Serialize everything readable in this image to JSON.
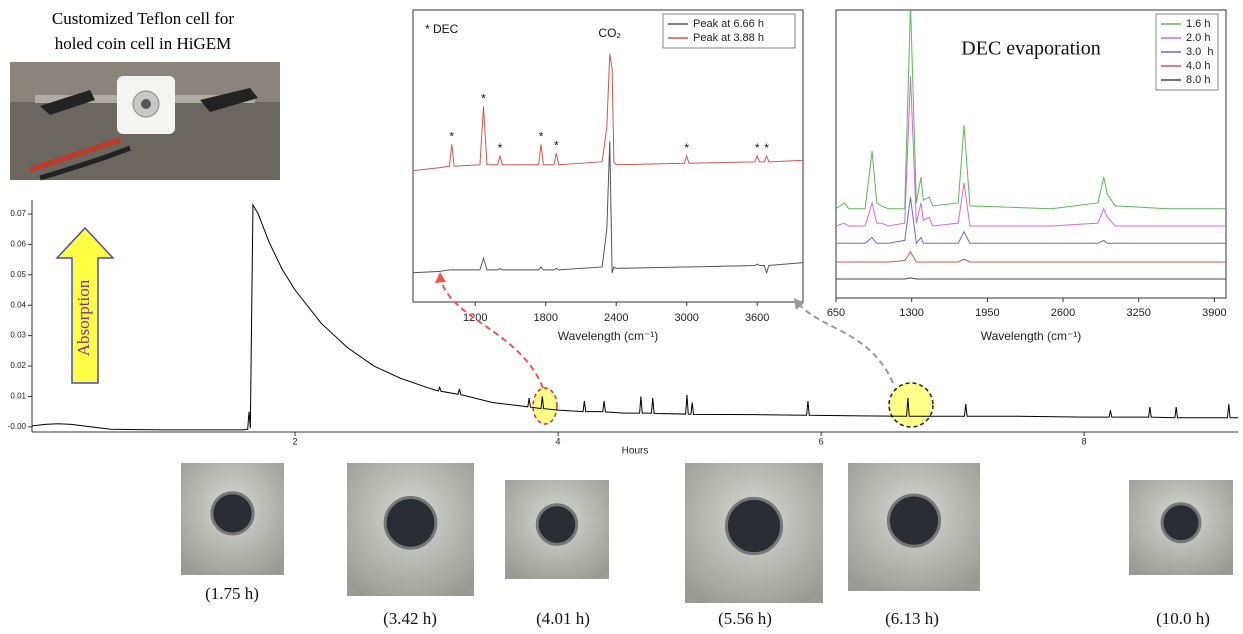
{
  "chart_data": [
    {
      "type": "line",
      "xlabel": "Hours",
      "color": "#000000",
      "xlim": [
        0,
        9.17
      ],
      "xticks": [
        2,
        4,
        6,
        8
      ],
      "ylim": [
        -0.0017,
        0.0746
      ],
      "yticks": [
        {
          "value": 0,
          "label": "-0.00"
        },
        0.01,
        0.02,
        0.03,
        0.04,
        0.05,
        0.06,
        0.07
      ],
      "x": [
        0,
        0.1,
        0.2,
        0.3,
        0.45,
        0.6,
        1.0,
        1.6,
        1.64,
        1.65,
        1.66,
        1.68,
        1.72,
        1.8,
        1.9,
        2.0,
        2.2,
        2.4,
        2.6,
        2.8,
        3.0,
        3.09,
        3.1,
        3.11,
        3.24,
        3.25,
        3.26,
        3.5,
        3.77,
        3.78,
        3.79,
        3.87,
        3.88,
        3.89,
        4.0,
        4.19,
        4.2,
        4.21,
        4.34,
        4.35,
        4.36,
        4.5,
        4.62,
        4.63,
        4.64,
        4.71,
        4.72,
        4.73,
        4.97,
        4.98,
        4.99,
        5.01,
        5.02,
        5.03,
        5.5,
        5.89,
        5.9,
        5.91,
        6.3,
        6.65,
        6.66,
        6.67,
        7.09,
        7.1,
        7.11,
        7.5,
        8.0,
        8.19,
        8.2,
        8.21,
        8.49,
        8.5,
        8.51,
        8.69,
        8.7,
        8.71,
        9.09,
        9.1,
        9.11,
        9.17
      ],
      "values": [
        0.0003,
        0.0008,
        0.001,
        0.0008,
        0.0,
        -0.0008,
        -0.001,
        -0.001,
        -0.0008,
        0.005,
        -0.0005,
        0.073,
        0.07,
        0.061,
        0.052,
        0.045,
        0.034,
        0.026,
        0.02,
        0.016,
        0.013,
        0.0118,
        0.013,
        0.0117,
        0.0107,
        0.0125,
        0.0106,
        0.008,
        0.0066,
        0.0095,
        0.0065,
        0.006,
        0.01,
        0.006,
        0.0055,
        0.005,
        0.0085,
        0.005,
        0.005,
        0.0085,
        0.0049,
        0.0045,
        0.0045,
        0.01,
        0.0045,
        0.0045,
        0.0095,
        0.0044,
        0.0042,
        0.0105,
        0.0042,
        0.0041,
        0.008,
        0.0041,
        0.004,
        0.0038,
        0.0085,
        0.0038,
        0.0036,
        0.0035,
        0.0095,
        0.0035,
        0.0035,
        0.0075,
        0.0035,
        0.0035,
        0.0032,
        0.0032,
        0.0055,
        0.0032,
        0.0032,
        0.0065,
        0.0032,
        0.003,
        0.0065,
        0.003,
        0.003,
        0.0075,
        0.003,
        0.003
      ]
    },
    {
      "type": "line",
      "xlabel": "Wavelength (cm⁻¹)",
      "legend": "upper right",
      "xlim": [
        670,
        3990
      ],
      "xticks": [
        1200,
        1800,
        2400,
        3000,
        3600
      ],
      "ylim": [
        0,
        1
      ],
      "annotations": [
        {
          "text": "* DEC"
        },
        {
          "text": "CO₂",
          "x": 2345
        }
      ],
      "markers": [
        {
          "x": 1000,
          "label": "*"
        },
        {
          "x": 1270,
          "label": "*"
        },
        {
          "x": 1410,
          "label": "*"
        },
        {
          "x": 1760,
          "label": "*"
        },
        {
          "x": 1890,
          "label": "*"
        },
        {
          "x": 3000,
          "label": "*"
        },
        {
          "x": 3600,
          "label": "*"
        },
        {
          "x": 3680,
          "label": "*"
        }
      ],
      "x": [
        670,
        900,
        980,
        1000,
        1020,
        1240,
        1270,
        1300,
        1390,
        1410,
        1430,
        1740,
        1760,
        1780,
        1870,
        1890,
        1910,
        2280,
        2320,
        2345,
        2365,
        2380,
        2400,
        2980,
        3000,
        3020,
        3580,
        3600,
        3620,
        3660,
        3680,
        3700,
        3990
      ],
      "series": [
        {
          "name": "Peak at 6.66 h",
          "color": "#555555",
          "values": [
            0.1,
            0.105,
            0.11,
            0.11,
            0.11,
            0.11,
            0.15,
            0.11,
            0.11,
            0.115,
            0.11,
            0.11,
            0.12,
            0.11,
            0.11,
            0.115,
            0.11,
            0.12,
            0.25,
            0.55,
            0.1,
            0.12,
            0.115,
            0.12,
            0.12,
            0.12,
            0.125,
            0.13,
            0.125,
            0.125,
            0.1,
            0.125,
            0.135
          ]
        },
        {
          "name": "Peak at 3.88 h",
          "color": "#d9534f",
          "values": [
            0.45,
            0.46,
            0.465,
            0.54,
            0.465,
            0.47,
            0.67,
            0.47,
            0.47,
            0.5,
            0.47,
            0.47,
            0.54,
            0.47,
            0.47,
            0.51,
            0.47,
            0.48,
            0.6,
            0.85,
            0.8,
            0.48,
            0.47,
            0.475,
            0.5,
            0.475,
            0.48,
            0.5,
            0.48,
            0.48,
            0.5,
            0.48,
            0.485
          ]
        }
      ]
    },
    {
      "type": "line",
      "title": "DEC evaporation",
      "xlabel": "Wavelength (cm⁻¹)",
      "legend": "upper right",
      "xlim": [
        650,
        4000
      ],
      "xticks": [
        650,
        1300,
        1950,
        2600,
        3250,
        3900
      ],
      "ylim": [
        0,
        1
      ],
      "x": [
        650,
        720,
        760,
        800,
        900,
        960,
        1000,
        1040,
        1100,
        1240,
        1290,
        1340,
        1380,
        1400,
        1450,
        1480,
        1700,
        1750,
        1800,
        2500,
        2900,
        2950,
        2980,
        3050,
        3500,
        4000
      ],
      "series": [
        {
          "name": "1.6 h",
          "color": "#5cb85c",
          "values": [
            0.31,
            0.33,
            0.31,
            0.31,
            0.31,
            0.51,
            0.33,
            0.32,
            0.31,
            0.31,
            1.02,
            0.33,
            0.42,
            0.34,
            0.35,
            0.32,
            0.33,
            0.6,
            0.32,
            0.31,
            0.33,
            0.42,
            0.36,
            0.32,
            0.31,
            0.31
          ]
        },
        {
          "name": "2.0 h",
          "color": "#d46ad4",
          "values": [
            0.25,
            0.26,
            0.25,
            0.25,
            0.25,
            0.33,
            0.26,
            0.26,
            0.25,
            0.26,
            0.77,
            0.26,
            0.33,
            0.27,
            0.28,
            0.25,
            0.26,
            0.4,
            0.25,
            0.25,
            0.26,
            0.31,
            0.28,
            0.25,
            0.25,
            0.25
          ]
        },
        {
          "name": "3.0  h",
          "color": "#6a6ad4",
          "values": [
            0.19,
            0.19,
            0.19,
            0.19,
            0.19,
            0.21,
            0.19,
            0.19,
            0.19,
            0.2,
            0.35,
            0.19,
            0.21,
            0.19,
            0.19,
            0.19,
            0.19,
            0.23,
            0.19,
            0.19,
            0.19,
            0.2,
            0.19,
            0.19,
            0.19,
            0.19
          ]
        },
        {
          "name": "4.0 h",
          "color": "#d9534f",
          "values": [
            0.125,
            0.125,
            0.125,
            0.125,
            0.125,
            0.125,
            0.125,
            0.125,
            0.125,
            0.13,
            0.16,
            0.125,
            0.125,
            0.125,
            0.125,
            0.125,
            0.125,
            0.135,
            0.125,
            0.125,
            0.125,
            0.125,
            0.125,
            0.125,
            0.125,
            0.125
          ]
        },
        {
          "name": "8.0 h",
          "color": "#444444",
          "values": [
            0.066,
            0.066,
            0.066,
            0.066,
            0.066,
            0.066,
            0.066,
            0.066,
            0.066,
            0.066,
            0.07,
            0.066,
            0.066,
            0.066,
            0.066,
            0.066,
            0.066,
            0.066,
            0.066,
            0.066,
            0.066,
            0.066,
            0.066,
            0.066,
            0.066,
            0.066
          ]
        }
      ]
    }
  ],
  "figure": {
    "caption": [
      "Customized Teflon cell for",
      "holed coin cell in HiGEM"
    ],
    "arrow_label": "Absorption",
    "photo_labels": [
      "(1.75 h)",
      "(3.42 h)",
      "(4.01 h)",
      "(5.56 h)",
      "(6.13 h)",
      "(10.0 h)"
    ]
  }
}
